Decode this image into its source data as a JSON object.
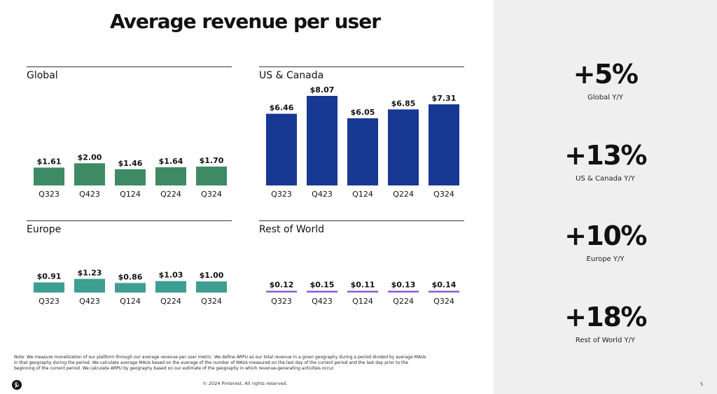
{
  "title": "Average revenue per user",
  "colors": {
    "global": "#3d8a64",
    "us_canada": "#173893",
    "europe": "#3e9e92",
    "row": "#8a5cd8"
  },
  "chart_data": [
    {
      "type": "bar",
      "title": "Global",
      "categories": [
        "Q323",
        "Q423",
        "Q124",
        "Q224",
        "Q324"
      ],
      "values": [
        1.61,
        2.0,
        1.46,
        1.64,
        1.7
      ],
      "labels": [
        "$1.61",
        "$2.00",
        "$1.46",
        "$1.64",
        "$1.70"
      ],
      "ylim": [
        0,
        8.07
      ]
    },
    {
      "type": "bar",
      "title": "US & Canada",
      "categories": [
        "Q323",
        "Q423",
        "Q124",
        "Q224",
        "Q324"
      ],
      "values": [
        6.46,
        8.07,
        6.05,
        6.85,
        7.31
      ],
      "labels": [
        "$6.46",
        "$8.07",
        "$6.05",
        "$6.85",
        "$7.31"
      ],
      "ylim": [
        0,
        8.07
      ]
    },
    {
      "type": "bar",
      "title": "Europe",
      "categories": [
        "Q323",
        "Q423",
        "Q124",
        "Q224",
        "Q324"
      ],
      "values": [
        0.91,
        1.23,
        0.86,
        1.03,
        1.0
      ],
      "labels": [
        "$0.91",
        "$1.23",
        "$0.86",
        "$1.03",
        "$1.00"
      ],
      "ylim": [
        0,
        8.07
      ]
    },
    {
      "type": "bar",
      "title": "Rest of World",
      "categories": [
        "Q323",
        "Q423",
        "Q124",
        "Q224",
        "Q324"
      ],
      "values": [
        0.12,
        0.15,
        0.11,
        0.13,
        0.14
      ],
      "labels": [
        "$0.12",
        "$0.15",
        "$0.11",
        "$0.13",
        "$0.14"
      ],
      "ylim": [
        0,
        8.07
      ]
    }
  ],
  "stats": [
    {
      "value": "+5%",
      "label": "Global Y/Y"
    },
    {
      "value": "+13%",
      "label": "US & Canada Y/Y"
    },
    {
      "value": "+10%",
      "label": "Europe Y/Y"
    },
    {
      "value": "+18%",
      "label": "Rest of World Y/Y"
    }
  ],
  "note": "Note: We measure monetization of our platform through our average revenue per user metric. We define ARPU as our total revenue in a given geography during a period divided by average MAUs in that geography during the period. We calculate average MAUs based on the average of the number of MAUs measured on the last day of the current period and the last day prior to the beginning of the current period. We calculate ARPU by geography based on our estimate of the geography in which revenue-generating activities occur.",
  "copyright": "© 2024 Pinterest. All rights reserved.",
  "page_number": "5",
  "logo_icon": "pinterest-logo-icon"
}
